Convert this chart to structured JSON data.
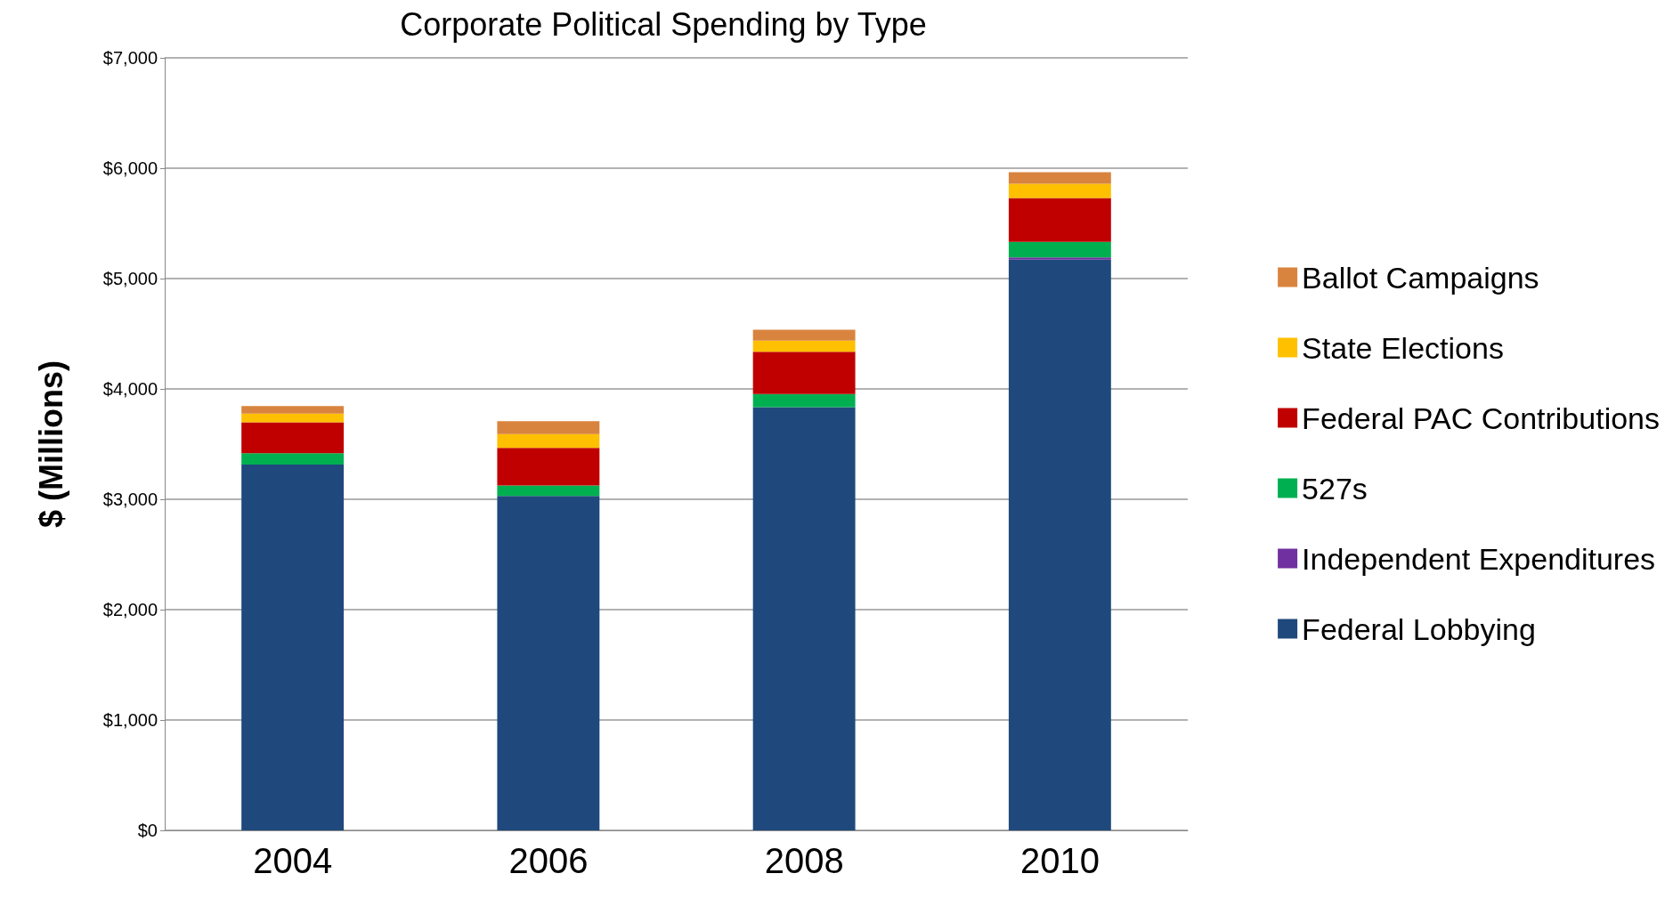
{
  "chart_data": {
    "type": "bar",
    "title": "Corporate Political Spending by Type",
    "ylabel": "$ (Millions)",
    "categories": [
      "2004",
      "2006",
      "2008",
      "2010"
    ],
    "stacked": true,
    "series": [
      {
        "name": "Federal Lobbying",
        "color": "#1f497d",
        "values": [
          3315,
          3030,
          3834,
          5172
        ]
      },
      {
        "name": "Independent Expenditures",
        "color": "#7030a0",
        "values": [
          0,
          0,
          0,
          20
        ]
      },
      {
        "name": "527s",
        "color": "#00b050",
        "values": [
          103,
          95,
          119,
          141
        ]
      },
      {
        "name": "Federal PAC Contributions",
        "color": "#c00000",
        "values": [
          279,
          340,
          384,
          397
        ]
      },
      {
        "name": "State Elections",
        "color": "#ffc000",
        "values": [
          80,
          125,
          100,
          129
        ]
      },
      {
        "name": "Ballot Campaigns",
        "color": "#d9843e",
        "values": [
          68,
          118,
          99,
          104
        ]
      }
    ],
    "ylim": [
      0,
      7000
    ],
    "yticks": [
      {
        "value": 0,
        "label": "$0"
      },
      {
        "value": 1000,
        "label": "$1,000"
      },
      {
        "value": 2000,
        "label": "$2,000"
      },
      {
        "value": 3000,
        "label": "$3,000"
      },
      {
        "value": 4000,
        "label": "$4,000"
      },
      {
        "value": 5000,
        "label": "$5,000"
      },
      {
        "value": 6000,
        "label": "$6,000"
      },
      {
        "value": 7000,
        "label": "$7,000"
      }
    ],
    "grid": "y",
    "legend": "right"
  }
}
